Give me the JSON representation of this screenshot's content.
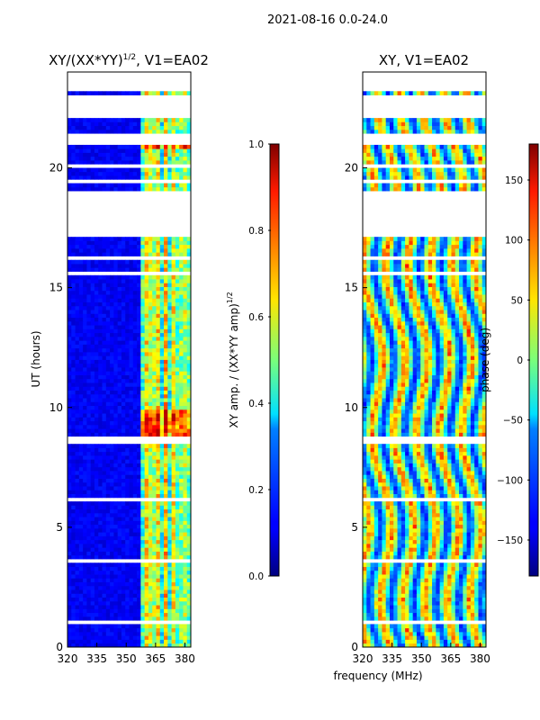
{
  "figure": {
    "suptitle": "2021-08-16 0.0-24.0",
    "shared_xlabel": "frequency (MHz)"
  },
  "chart_data": [
    {
      "type": "heatmap",
      "title": "XY/(XX*YY)^1/2, V1=EA02",
      "title_main": "XY/(XX*YY)",
      "title_exp": "1/2",
      "title_tail": ", V1=EA02",
      "xlabel": "",
      "ylabel": "UT (hours)",
      "xlim": [
        320,
        383
      ],
      "ylim": [
        0,
        24
      ],
      "xticks": [
        320,
        335,
        350,
        365,
        380
      ],
      "yticks": [
        0,
        5,
        10,
        15,
        20
      ],
      "colorbar": {
        "label": "XY amp. / (XX*YY amp)^1/2",
        "label_main": "XY amp. / (XX*YY amp)",
        "label_exp": "1/2",
        "range": [
          0.0,
          1.0
        ],
        "ticks": [
          "0.0",
          "0.2",
          "0.4",
          "0.6",
          "0.8",
          "1.0"
        ],
        "colormap": "jet"
      }
    },
    {
      "type": "heatmap",
      "title": "XY, V1=EA02",
      "xlabel": "frequency (MHz)",
      "ylabel": "",
      "xlim": [
        320,
        383
      ],
      "ylim": [
        0,
        24
      ],
      "xticks": [
        320,
        335,
        350,
        365,
        380
      ],
      "yticks": [
        0,
        5,
        10,
        15,
        20
      ],
      "colorbar": {
        "label": "phase (deg)",
        "range": [
          -180,
          180
        ],
        "ticks": [
          "-150",
          "-100",
          "-50",
          "0",
          "50",
          "100",
          "150"
        ],
        "colormap": "jet"
      }
    }
  ]
}
